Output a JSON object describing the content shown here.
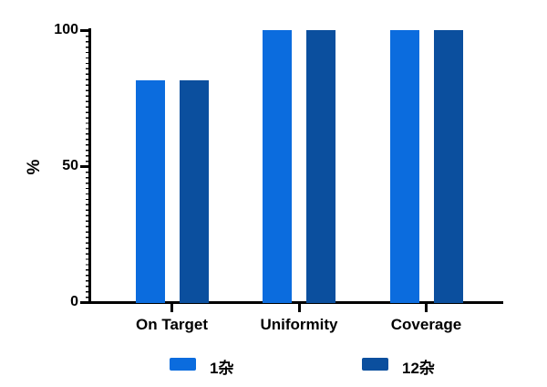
{
  "figure": {
    "background_color": "#ffffff",
    "axis_color": "#000000",
    "text_color": "#000000"
  },
  "chart_data": {
    "type": "bar",
    "title": "",
    "xlabel": "",
    "ylabel": "%",
    "categories": [
      "On Target",
      "Uniformity",
      "Coverage"
    ],
    "series": [
      {
        "name": "1杂",
        "color": "#0b6cde",
        "values": [
          81.5,
          100,
          100
        ]
      },
      {
        "name": "12杂",
        "color": "#0b4f9e",
        "values": [
          81.5,
          100,
          100
        ]
      }
    ],
    "ylim": [
      0,
      100
    ],
    "yticks": [
      0,
      50,
      100
    ],
    "grid": false,
    "legend_position": "bottom"
  }
}
